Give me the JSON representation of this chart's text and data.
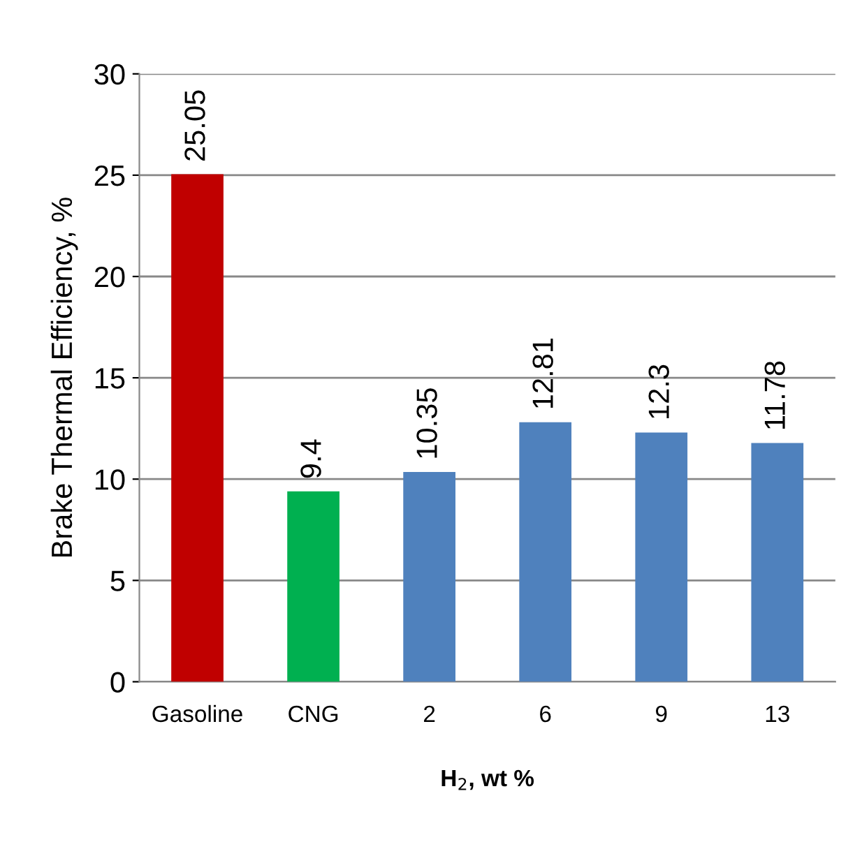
{
  "chart_data": {
    "type": "bar",
    "xlabel": "H$_{2}$, wt %",
    "ylabel": "Brake Thermal Efficiency, %",
    "categories": [
      "Gasoline",
      "CNG",
      "2",
      "6",
      "9",
      "13"
    ],
    "values": [
      25.05,
      9.4,
      10.35,
      12.81,
      12.3,
      11.78
    ],
    "colors": [
      "#c00000",
      "#00b050",
      "#4f81bd",
      "#4f81bd",
      "#4f81bd",
      "#4f81bd"
    ],
    "ylim": [
      0,
      30
    ],
    "yticks": [
      0,
      5,
      10,
      15,
      20,
      25,
      30
    ],
    "grid": "y",
    "data_labels": true
  }
}
